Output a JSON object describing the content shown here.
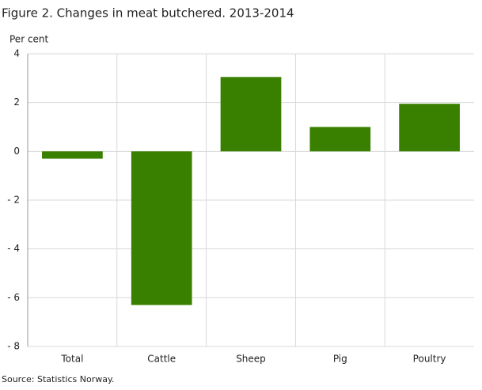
{
  "chart_data": {
    "type": "bar",
    "title": "Figure 2. Changes in meat butchered. 2013-2014",
    "y_label": "Per cent",
    "source": "Source: Statistics Norway.",
    "categories": [
      "Total",
      "Cattle",
      "Sheep",
      "Pig",
      "Poultry"
    ],
    "values": [
      -0.3,
      -6.3,
      3.05,
      1.0,
      1.95
    ],
    "color": "#3a8000",
    "ylim": [
      -8,
      4
    ],
    "yticks": [
      4,
      2,
      0,
      {
        "value": -2,
        "label": "- 2"
      },
      {
        "value": -4,
        "label": "- 4"
      },
      {
        "value": -6,
        "label": "- 6"
      },
      {
        "value": -8,
        "label": "- 8"
      }
    ],
    "grid": true
  }
}
